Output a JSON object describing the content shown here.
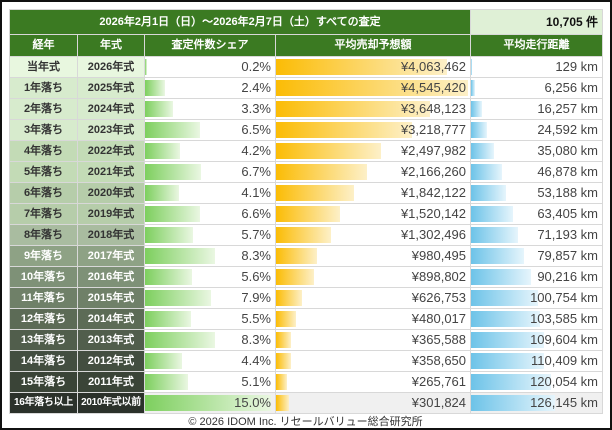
{
  "title": "2026年2月1日（日）～2026年2月7日（土）すべての査定",
  "total": "10,705 件",
  "headers": [
    "経年",
    "年式",
    "査定件数シェア",
    "平均売却予想額",
    "平均走行距離"
  ],
  "rows": [
    {
      "age": "当年式",
      "year": "2026年式",
      "share": "0.2%",
      "price": "¥4,063,462",
      "km": "129 km",
      "s": 0.2,
      "p": 4063462,
      "k": 129
    },
    {
      "age": "1年落ち",
      "year": "2025年式",
      "share": "2.4%",
      "price": "¥4,545,420",
      "km": "6,256 km",
      "s": 2.4,
      "p": 4545420,
      "k": 6256
    },
    {
      "age": "2年落ち",
      "year": "2024年式",
      "share": "3.3%",
      "price": "¥3,648,123",
      "km": "16,257 km",
      "s": 3.3,
      "p": 3648123,
      "k": 16257
    },
    {
      "age": "3年落ち",
      "year": "2023年式",
      "share": "6.5%",
      "price": "¥3,218,777",
      "km": "24,592 km",
      "s": 6.5,
      "p": 3218777,
      "k": 24592
    },
    {
      "age": "4年落ち",
      "year": "2022年式",
      "share": "4.2%",
      "price": "¥2,497,982",
      "km": "35,080 km",
      "s": 4.2,
      "p": 2497982,
      "k": 35080
    },
    {
      "age": "5年落ち",
      "year": "2021年式",
      "share": "6.7%",
      "price": "¥2,166,260",
      "km": "46,878 km",
      "s": 6.7,
      "p": 2166260,
      "k": 46878
    },
    {
      "age": "6年落ち",
      "year": "2020年式",
      "share": "4.1%",
      "price": "¥1,842,122",
      "km": "53,188 km",
      "s": 4.1,
      "p": 1842122,
      "k": 53188
    },
    {
      "age": "7年落ち",
      "year": "2019年式",
      "share": "6.6%",
      "price": "¥1,520,142",
      "km": "63,405 km",
      "s": 6.6,
      "p": 1520142,
      "k": 63405
    },
    {
      "age": "8年落ち",
      "year": "2018年式",
      "share": "5.7%",
      "price": "¥1,302,496",
      "km": "71,193 km",
      "s": 5.7,
      "p": 1302496,
      "k": 71193
    },
    {
      "age": "9年落ち",
      "year": "2017年式",
      "share": "8.3%",
      "price": "¥980,495",
      "km": "79,857 km",
      "s": 8.3,
      "p": 980495,
      "k": 79857
    },
    {
      "age": "10年落ち",
      "year": "2016年式",
      "share": "5.6%",
      "price": "¥898,802",
      "km": "90,216 km",
      "s": 5.6,
      "p": 898802,
      "k": 90216
    },
    {
      "age": "11年落ち",
      "year": "2015年式",
      "share": "7.9%",
      "price": "¥626,753",
      "km": "100,754 km",
      "s": 7.9,
      "p": 626753,
      "k": 100754
    },
    {
      "age": "12年落ち",
      "year": "2014年式",
      "share": "5.5%",
      "price": "¥480,017",
      "km": "103,585 km",
      "s": 5.5,
      "p": 480017,
      "k": 103585
    },
    {
      "age": "13年落ち",
      "year": "2013年式",
      "share": "8.3%",
      "price": "¥365,588",
      "km": "109,604 km",
      "s": 8.3,
      "p": 365588,
      "k": 109604
    },
    {
      "age": "14年落ち",
      "year": "2012年式",
      "share": "4.4%",
      "price": "¥358,650",
      "km": "110,409 km",
      "s": 4.4,
      "p": 358650,
      "k": 110409
    },
    {
      "age": "15年落ち",
      "year": "2011年式",
      "share": "5.1%",
      "price": "¥265,761",
      "km": "120,054 km",
      "s": 5.1,
      "p": 265761,
      "k": 120054
    },
    {
      "age": "16年落ち以上",
      "year": "2010年式以前",
      "share": "15.0%",
      "price": "¥301,824",
      "km": "126,145 km",
      "s": 15.0,
      "p": 301824,
      "k": 126145
    }
  ],
  "footer": "© 2026 IDOM Inc. リセールバリュー総合研究所"
}
